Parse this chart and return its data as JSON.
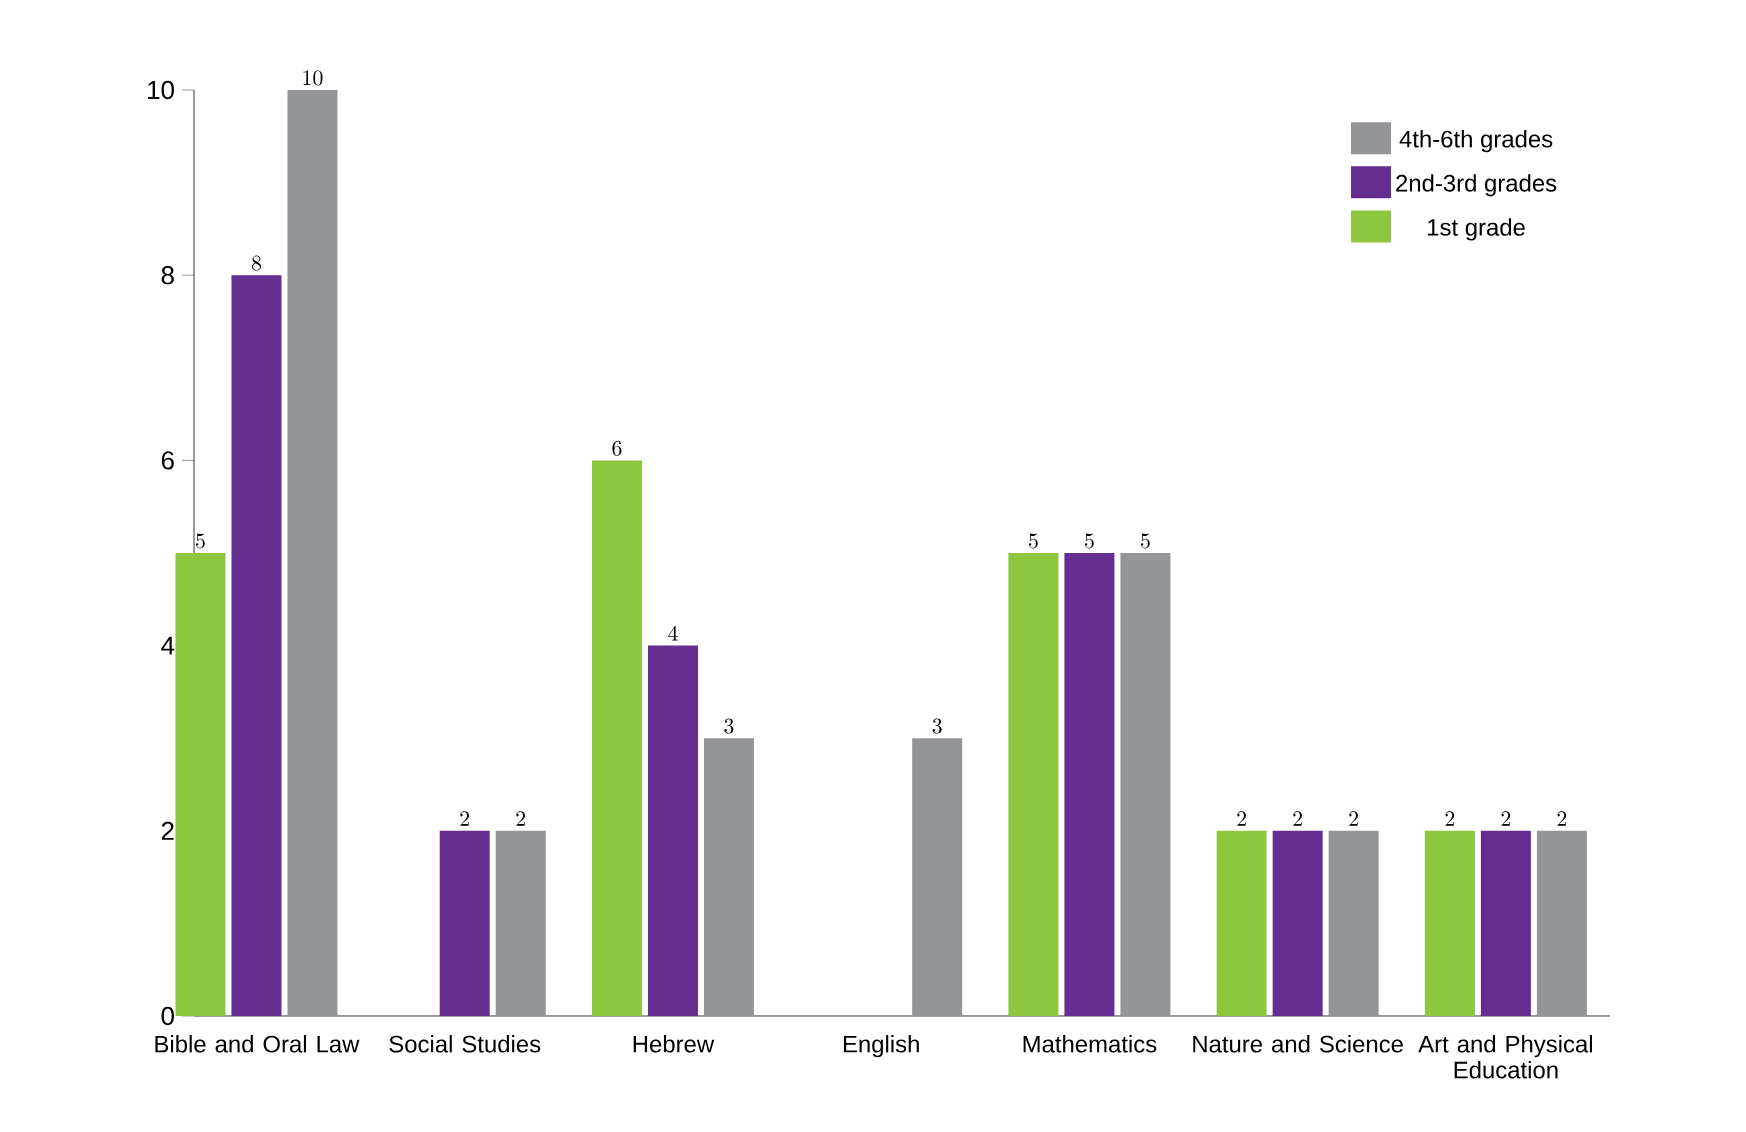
{
  "chart_data": {
    "type": "bar",
    "categories": [
      "Bible and Oral Law",
      "Social Studies",
      "Hebrew",
      "English",
      "Mathematics",
      "Nature and Science",
      "Art and Physical Education"
    ],
    "series": [
      {
        "name": "1st grade",
        "color": "#8dc63f",
        "values": [
          5,
          null,
          6,
          null,
          5,
          2,
          2
        ]
      },
      {
        "name": "2nd-3rd grades",
        "color": "#662d91",
        "values": [
          8,
          2,
          4,
          null,
          5,
          2,
          2
        ]
      },
      {
        "name": "4th-6th grades",
        "color": "#939598",
        "values": [
          10,
          2,
          3,
          3,
          5,
          2,
          2
        ]
      }
    ],
    "ylim": [
      0,
      10
    ],
    "yticks": [
      0,
      2,
      4,
      6,
      8,
      10
    ],
    "grid": false,
    "legend": "top right",
    "data_labels": true
  }
}
